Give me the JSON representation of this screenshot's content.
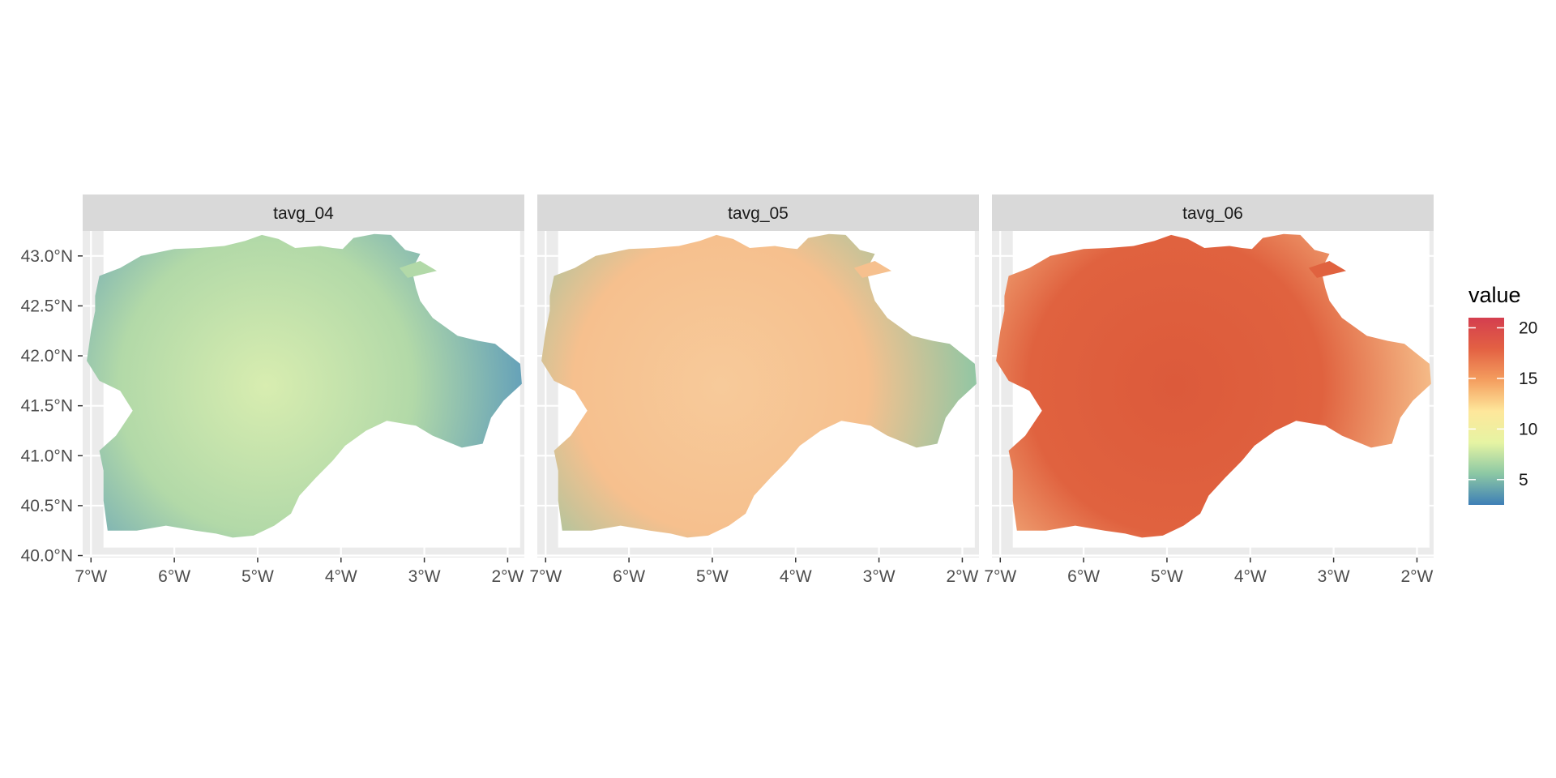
{
  "chart_data": {
    "type": "heatmap",
    "panels": [
      {
        "name": "tavg_04",
        "mean": 7.5,
        "colors": {
          "main": "#b2d9a8",
          "core": "#d8edb0",
          "edge": "#5e9cba"
        }
      },
      {
        "name": "tavg_05",
        "mean": 11.0,
        "colors": {
          "main": "#f6c08e",
          "core": "#f7ca9a",
          "edge": "#87c7a6"
        }
      },
      {
        "name": "tavg_06",
        "mean": 16.0,
        "colors": {
          "main": "#e0623f",
          "core": "#dc5a3b",
          "edge": "#f7c48f"
        }
      }
    ],
    "x_ticks": [
      "7°W",
      "6°W",
      "5°W",
      "4°W",
      "3°W",
      "2°W"
    ],
    "x_values": [
      -7,
      -6,
      -5,
      -4,
      -3,
      -2
    ],
    "y_ticks": [
      "40.0°N",
      "40.5°N",
      "41.0°N",
      "41.5°N",
      "42.0°N",
      "42.5°N",
      "43.0°N"
    ],
    "y_values": [
      40.0,
      40.5,
      41.0,
      41.5,
      42.0,
      42.5,
      43.0
    ],
    "xlim": [
      -7.1,
      -1.8
    ],
    "ylim": [
      39.98,
      43.25
    ],
    "legend": {
      "title": "value",
      "labels": [
        "20",
        "15",
        "10",
        "5"
      ],
      "values": [
        20,
        15,
        10,
        5
      ],
      "range": [
        2.5,
        21
      ],
      "colors": [
        "#3e7fb6",
        "#8cc8a4",
        "#e6f4a3",
        "#fee79b",
        "#f49e5f",
        "#e36143",
        "#d43e4f"
      ],
      "placement": "right"
    }
  }
}
